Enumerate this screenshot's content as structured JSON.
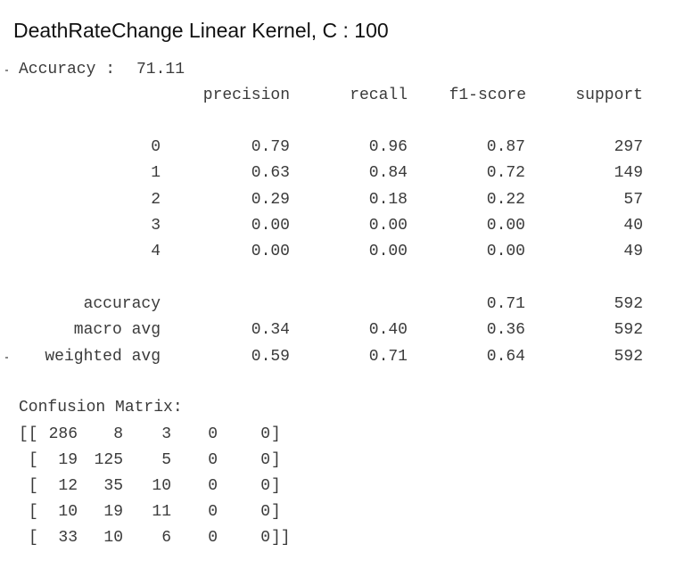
{
  "title": "DeathRateChange Linear Kernel, C : 100",
  "accuracy_line": {
    "label": "Accuracy :",
    "value": "71.11"
  },
  "report": {
    "headers": [
      "precision",
      "recall",
      "f1-score",
      "support"
    ],
    "class_rows": [
      {
        "label": "0",
        "precision": "0.79",
        "recall": "0.96",
        "f1": "0.87",
        "support": "297"
      },
      {
        "label": "1",
        "precision": "0.63",
        "recall": "0.84",
        "f1": "0.72",
        "support": "149"
      },
      {
        "label": "2",
        "precision": "0.29",
        "recall": "0.18",
        "f1": "0.22",
        "support": "57"
      },
      {
        "label": "3",
        "precision": "0.00",
        "recall": "0.00",
        "f1": "0.00",
        "support": "40"
      },
      {
        "label": "4",
        "precision": "0.00",
        "recall": "0.00",
        "f1": "0.00",
        "support": "49"
      }
    ],
    "summary_rows": [
      {
        "label": "accuracy",
        "precision": "",
        "recall": "",
        "f1": "0.71",
        "support": "592"
      },
      {
        "label": "macro avg",
        "precision": "0.34",
        "recall": "0.40",
        "f1": "0.36",
        "support": "592"
      },
      {
        "label": "weighted avg",
        "precision": "0.59",
        "recall": "0.71",
        "f1": "0.64",
        "support": "592"
      }
    ]
  },
  "confusion": {
    "label": "Confusion Matrix:",
    "rows": [
      [
        "286",
        "8",
        "3",
        "0",
        "0"
      ],
      [
        "19",
        "125",
        "5",
        "0",
        "0"
      ],
      [
        "12",
        "35",
        "10",
        "0",
        "0"
      ],
      [
        "10",
        "19",
        "11",
        "0",
        "0"
      ],
      [
        "33",
        "10",
        "6",
        "0",
        "0"
      ]
    ]
  }
}
